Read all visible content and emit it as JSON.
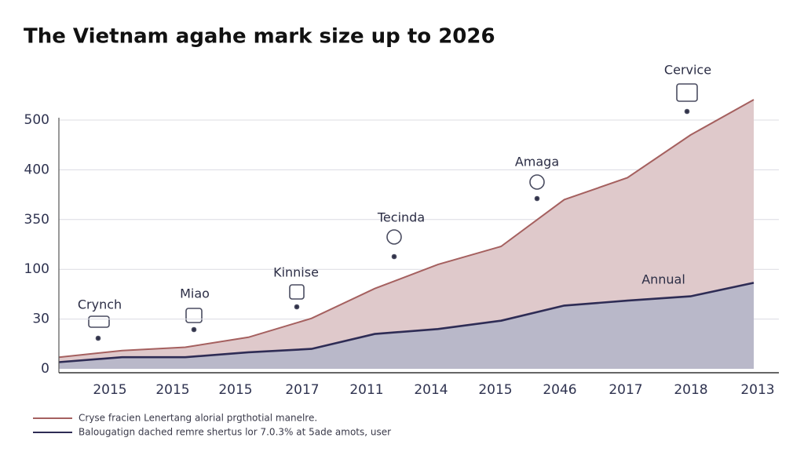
{
  "chart_data": {
    "type": "area",
    "title": "The Vietnam agahe mark size up to 2026",
    "categories": [
      null,
      "2015",
      "2015",
      "2015",
      "2017",
      "2011",
      "2014",
      "2015",
      "2046",
      "2017",
      "2018",
      "2013"
    ],
    "series": [
      {
        "name": "Cryse fracien Lenertang alorial prgthotial manelre.",
        "color": "#a5605f",
        "fill": "#dfc9cb",
        "values": [
          7,
          11,
          13,
          19,
          31,
          73,
          124,
          215,
          370,
          392,
          470,
          541
        ]
      },
      {
        "name": "Balougatign dached remre shertus lor 7.0.3% at 5ade amots, user",
        "color": "#2e2c55",
        "fill": "#b9b8c9",
        "values": [
          4,
          7,
          7,
          10,
          12,
          21,
          24,
          29,
          49,
          56,
          62,
          81
        ]
      }
    ],
    "ylim": [
      0,
      500
    ],
    "yticks": [
      0,
      30,
      100,
      350,
      400,
      500
    ],
    "grid": true,
    "annotations": [
      "Crynch",
      "Miao",
      "Kinnise",
      "Tecinda",
      "Amaga",
      "Cervice",
      "Annual"
    ]
  }
}
